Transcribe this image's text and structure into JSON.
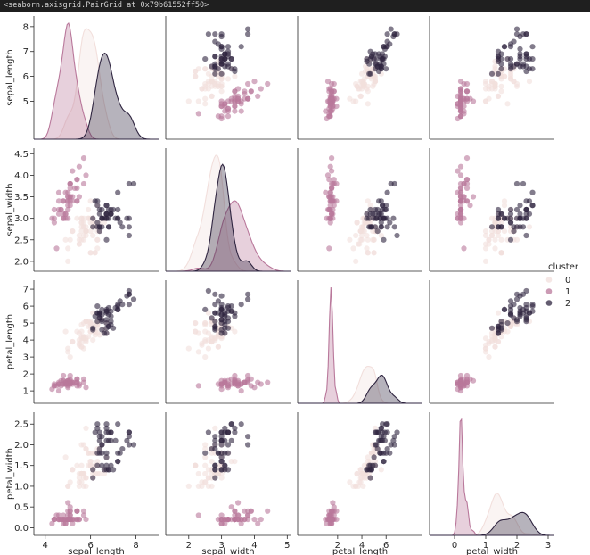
{
  "output_text": "<seaborn.axisgrid.PairGrid at 0x79b61552ff50>",
  "colors": {
    "cluster_0": "#f2dfdc",
    "cluster_1": "#b9789b",
    "cluster_2": "#2f2540",
    "axis": "#262626",
    "background": "#ffffff"
  },
  "chart_data": {
    "type": "scatter",
    "title": "",
    "variables": [
      "sepal_length",
      "sepal_width",
      "petal_length",
      "petal_width"
    ],
    "axis_labels": {
      "x": [
        "sepal_length",
        "sepal_width",
        "petal_length",
        "petal_width"
      ],
      "y": [
        "sepal_length",
        "sepal_width",
        "petal_length",
        "petal_width"
      ]
    },
    "ranges": {
      "sepal_length": [
        3.7,
        8.2
      ],
      "sepal_width": [
        1.9,
        4.5
      ],
      "petal_length": [
        0.6,
        7.2
      ],
      "petal_width": [
        -0.05,
        2.65
      ]
    },
    "x_limits": {
      "sepal_length": [
        3.5,
        9.0
      ],
      "sepal_width": [
        1.3,
        5.1
      ],
      "petal_length": [
        -1.3,
        9.0
      ],
      "petal_width": [
        -0.8,
        3.2
      ]
    },
    "ticks": {
      "sepal_length_y": [
        "5",
        "6",
        "7",
        "8"
      ],
      "sepal_width_y": [
        "2.0",
        "2.5",
        "3.0",
        "3.5",
        "4.0",
        "4.5"
      ],
      "petal_length_y": [
        "1",
        "2",
        "3",
        "4",
        "5",
        "6",
        "7"
      ],
      "petal_width_y": [
        "0.0",
        "0.5",
        "1.0",
        "1.5",
        "2.0",
        "2.5"
      ],
      "sepal_length_x": [
        "4",
        "6",
        "8"
      ],
      "sepal_width_x": [
        "2",
        "3",
        "4",
        "5"
      ],
      "petal_length_x": [
        "2",
        "4",
        "6"
      ],
      "petal_width_x": [
        "0",
        "1",
        "2",
        "3"
      ]
    },
    "legend": {
      "title": "cluster",
      "entries": [
        "0",
        "1",
        "2"
      ],
      "placement": "right"
    },
    "diagonal": "kde",
    "offdiagonal": "scatter",
    "series": [
      {
        "name": "0",
        "points": [
          [
            5.7,
            2.8,
            4.1,
            1.3
          ],
          [
            5.6,
            2.9,
            3.6,
            1.3
          ],
          [
            5.8,
            2.7,
            4.1,
            1.0
          ],
          [
            6.2,
            2.2,
            4.5,
            1.5
          ],
          [
            5.6,
            2.5,
            3.9,
            1.1
          ],
          [
            5.9,
            3.2,
            4.8,
            1.8
          ],
          [
            6.1,
            2.8,
            4.0,
            1.3
          ],
          [
            6.3,
            2.5,
            4.9,
            1.5
          ],
          [
            6.1,
            2.8,
            4.7,
            1.2
          ],
          [
            6.4,
            2.9,
            4.3,
            1.3
          ],
          [
            6.6,
            3.0,
            4.4,
            1.4
          ],
          [
            6.0,
            2.9,
            4.5,
            1.5
          ],
          [
            5.7,
            2.6,
            3.5,
            1.0
          ],
          [
            5.5,
            2.4,
            3.8,
            1.1
          ],
          [
            5.5,
            2.4,
            3.7,
            1.0
          ],
          [
            5.8,
            2.7,
            3.9,
            1.2
          ],
          [
            6.0,
            2.7,
            5.1,
            1.6
          ],
          [
            5.4,
            3.0,
            4.5,
            1.5
          ],
          [
            6.0,
            3.4,
            4.5,
            1.6
          ],
          [
            6.3,
            2.3,
            4.4,
            1.3
          ],
          [
            5.6,
            3.0,
            4.1,
            1.3
          ],
          [
            5.5,
            2.5,
            4.0,
            1.3
          ],
          [
            5.5,
            2.6,
            4.4,
            1.2
          ],
          [
            6.1,
            3.0,
            4.6,
            1.4
          ],
          [
            5.8,
            2.6,
            4.0,
            1.2
          ],
          [
            5.0,
            2.3,
            3.3,
            1.0
          ],
          [
            5.6,
            2.7,
            4.2,
            1.3
          ],
          [
            5.7,
            3.0,
            4.2,
            1.2
          ],
          [
            5.7,
            2.9,
            4.2,
            1.3
          ],
          [
            6.2,
            2.9,
            4.3,
            1.3
          ],
          [
            5.1,
            2.5,
            3.0,
            1.1
          ],
          [
            5.7,
            2.8,
            4.1,
            1.3
          ],
          [
            4.9,
            2.5,
            4.5,
            1.7
          ],
          [
            5.8,
            2.8,
            5.1,
            2.4
          ],
          [
            6.0,
            2.2,
            5.0,
            1.5
          ],
          [
            5.6,
            2.8,
            4.9,
            2.0
          ],
          [
            6.3,
            2.7,
            4.9,
            1.8
          ],
          [
            6.2,
            2.8,
            4.8,
            1.8
          ],
          [
            6.1,
            3.0,
            4.9,
            1.8
          ],
          [
            5.8,
            2.7,
            5.1,
            1.9
          ],
          [
            6.3,
            2.8,
            5.1,
            1.5
          ],
          [
            6.0,
            3.0,
            4.8,
            1.8
          ],
          [
            5.8,
            2.7,
            5.1,
            1.9
          ],
          [
            5.7,
            2.5,
            5.0,
            2.0
          ],
          [
            5.9,
            3.0,
            5.1,
            1.8
          ],
          [
            5.2,
            2.7,
            3.9,
            1.4
          ],
          [
            5.0,
            2.0,
            3.5,
            1.0
          ],
          [
            5.9,
            3.0,
            4.2,
            1.5
          ],
          [
            6.1,
            2.9,
            4.7,
            1.4
          ],
          [
            5.6,
            2.9,
            3.6,
            1.3
          ],
          [
            6.7,
            3.1,
            4.4,
            1.4
          ],
          [
            5.6,
            3.0,
            4.5,
            1.5
          ],
          [
            6.2,
            2.2,
            4.5,
            1.5
          ],
          [
            6.7,
            3.0,
            5.0,
            1.7
          ],
          [
            6.0,
            2.2,
            5.0,
            1.5
          ],
          [
            6.3,
            2.5,
            5.0,
            1.9
          ],
          [
            6.5,
            3.0,
            5.2,
            2.0
          ],
          [
            6.4,
            2.7,
            5.3,
            1.9
          ],
          [
            6.3,
            3.3,
            4.7,
            1.6
          ],
          [
            6.6,
            2.9,
            4.6,
            1.3
          ],
          [
            5.2,
            2.7,
            3.9,
            1.4
          ],
          [
            6.1,
            2.6,
            5.6,
            1.4
          ]
        ]
      },
      {
        "name": "1",
        "points": [
          [
            5.1,
            3.5,
            1.4,
            0.2
          ],
          [
            4.9,
            3.0,
            1.4,
            0.2
          ],
          [
            4.7,
            3.2,
            1.3,
            0.2
          ],
          [
            4.6,
            3.1,
            1.5,
            0.2
          ],
          [
            5.0,
            3.6,
            1.4,
            0.2
          ],
          [
            5.4,
            3.9,
            1.7,
            0.4
          ],
          [
            4.6,
            3.4,
            1.4,
            0.3
          ],
          [
            5.0,
            3.4,
            1.5,
            0.2
          ],
          [
            4.4,
            2.9,
            1.4,
            0.2
          ],
          [
            4.9,
            3.1,
            1.5,
            0.1
          ],
          [
            5.4,
            3.7,
            1.5,
            0.2
          ],
          [
            4.8,
            3.4,
            1.6,
            0.2
          ],
          [
            4.8,
            3.0,
            1.4,
            0.1
          ],
          [
            4.3,
            3.0,
            1.1,
            0.1
          ],
          [
            5.8,
            4.0,
            1.2,
            0.2
          ],
          [
            5.7,
            4.4,
            1.5,
            0.4
          ],
          [
            5.4,
            3.9,
            1.3,
            0.4
          ],
          [
            5.1,
            3.5,
            1.4,
            0.3
          ],
          [
            5.7,
            3.8,
            1.7,
            0.3
          ],
          [
            5.1,
            3.8,
            1.5,
            0.3
          ],
          [
            5.4,
            3.4,
            1.7,
            0.2
          ],
          [
            5.1,
            3.7,
            1.5,
            0.4
          ],
          [
            4.6,
            3.6,
            1.0,
            0.2
          ],
          [
            5.1,
            3.3,
            1.7,
            0.5
          ],
          [
            4.8,
            3.4,
            1.9,
            0.2
          ],
          [
            5.0,
            3.0,
            1.6,
            0.2
          ],
          [
            5.0,
            3.4,
            1.6,
            0.4
          ],
          [
            5.2,
            3.5,
            1.5,
            0.2
          ],
          [
            5.2,
            3.4,
            1.4,
            0.2
          ],
          [
            4.7,
            3.2,
            1.6,
            0.2
          ],
          [
            4.8,
            3.1,
            1.6,
            0.2
          ],
          [
            5.4,
            3.4,
            1.5,
            0.4
          ],
          [
            5.2,
            4.1,
            1.5,
            0.1
          ],
          [
            5.5,
            4.2,
            1.4,
            0.2
          ],
          [
            4.9,
            3.1,
            1.5,
            0.2
          ],
          [
            5.0,
            3.2,
            1.2,
            0.2
          ],
          [
            5.5,
            3.5,
            1.3,
            0.2
          ],
          [
            4.4,
            3.0,
            1.3,
            0.2
          ],
          [
            5.1,
            3.4,
            1.5,
            0.2
          ],
          [
            5.0,
            3.5,
            1.3,
            0.3
          ],
          [
            4.5,
            2.3,
            1.3,
            0.3
          ],
          [
            4.4,
            3.2,
            1.3,
            0.2
          ],
          [
            5.0,
            3.5,
            1.6,
            0.6
          ],
          [
            5.1,
            3.8,
            1.9,
            0.4
          ],
          [
            4.8,
            3.0,
            1.4,
            0.3
          ],
          [
            5.1,
            3.8,
            1.6,
            0.2
          ],
          [
            4.6,
            3.2,
            1.4,
            0.2
          ],
          [
            5.3,
            3.7,
            1.5,
            0.2
          ],
          [
            5.0,
            3.3,
            1.4,
            0.2
          ],
          [
            4.9,
            3.6,
            1.4,
            0.1
          ]
        ]
      },
      {
        "name": "2",
        "points": [
          [
            7.0,
            3.2,
            4.7,
            1.4
          ],
          [
            6.9,
            3.1,
            4.9,
            1.5
          ],
          [
            6.7,
            3.1,
            4.7,
            1.5
          ],
          [
            6.8,
            2.8,
            4.8,
            1.4
          ],
          [
            6.3,
            3.3,
            6.0,
            2.5
          ],
          [
            7.1,
            3.0,
            5.9,
            2.1
          ],
          [
            6.5,
            3.0,
            5.8,
            2.2
          ],
          [
            7.6,
            3.0,
            6.6,
            2.1
          ],
          [
            7.3,
            2.9,
            6.3,
            1.8
          ],
          [
            6.7,
            2.5,
            5.8,
            1.8
          ],
          [
            7.2,
            3.6,
            6.1,
            2.5
          ],
          [
            6.5,
            3.2,
            5.1,
            2.0
          ],
          [
            6.4,
            2.7,
            5.3,
            1.9
          ],
          [
            6.8,
            3.0,
            5.5,
            2.1
          ],
          [
            6.4,
            3.2,
            5.3,
            2.3
          ],
          [
            6.5,
            3.0,
            5.5,
            1.8
          ],
          [
            7.7,
            3.8,
            6.7,
            2.2
          ],
          [
            7.7,
            2.6,
            6.9,
            2.3
          ],
          [
            6.9,
            3.2,
            5.7,
            2.3
          ],
          [
            7.7,
            2.8,
            6.7,
            2.0
          ],
          [
            6.7,
            3.3,
            5.7,
            2.1
          ],
          [
            7.2,
            3.2,
            6.0,
            1.8
          ],
          [
            6.4,
            2.8,
            5.6,
            2.1
          ],
          [
            7.2,
            3.0,
            5.8,
            1.6
          ],
          [
            7.4,
            2.8,
            6.1,
            1.9
          ],
          [
            7.9,
            3.8,
            6.4,
            2.0
          ],
          [
            6.4,
            2.8,
            5.6,
            2.2
          ],
          [
            6.3,
            2.8,
            5.1,
            1.5
          ],
          [
            7.7,
            3.0,
            6.1,
            2.3
          ],
          [
            6.3,
            3.4,
            5.6,
            2.4
          ],
          [
            6.4,
            3.1,
            5.5,
            1.8
          ],
          [
            6.9,
            3.1,
            5.4,
            2.1
          ],
          [
            6.7,
            3.1,
            5.6,
            2.4
          ],
          [
            6.9,
            3.1,
            5.1,
            2.3
          ],
          [
            6.8,
            3.2,
            5.9,
            2.3
          ],
          [
            6.7,
            3.3,
            5.7,
            2.5
          ],
          [
            6.7,
            3.0,
            5.2,
            2.3
          ],
          [
            6.5,
            3.0,
            5.2,
            2.0
          ],
          [
            6.2,
            3.4,
            5.4,
            2.3
          ],
          [
            6.6,
            3.0,
            4.4,
            1.4
          ],
          [
            6.7,
            3.1,
            4.4,
            1.4
          ],
          [
            6.1,
            2.8,
            4.7,
            1.2
          ],
          [
            6.8,
            2.8,
            4.8,
            1.4
          ],
          [
            6.7,
            3.0,
            5.0,
            1.7
          ],
          [
            6.3,
            2.9,
            5.6,
            1.8
          ],
          [
            6.5,
            2.8,
            4.6,
            1.5
          ],
          [
            7.2,
            3.0,
            5.8,
            1.6
          ],
          [
            6.1,
            3.0,
            4.6,
            1.4
          ]
        ]
      }
    ]
  }
}
